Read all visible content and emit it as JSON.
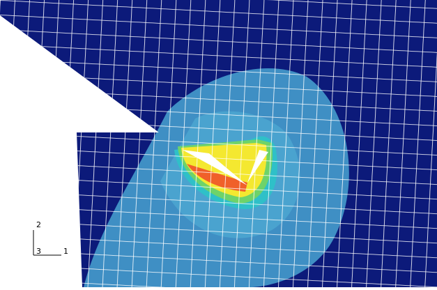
{
  "triad": {
    "axis_2": "2",
    "axis_3": "3",
    "axis_1": "1"
  }
}
